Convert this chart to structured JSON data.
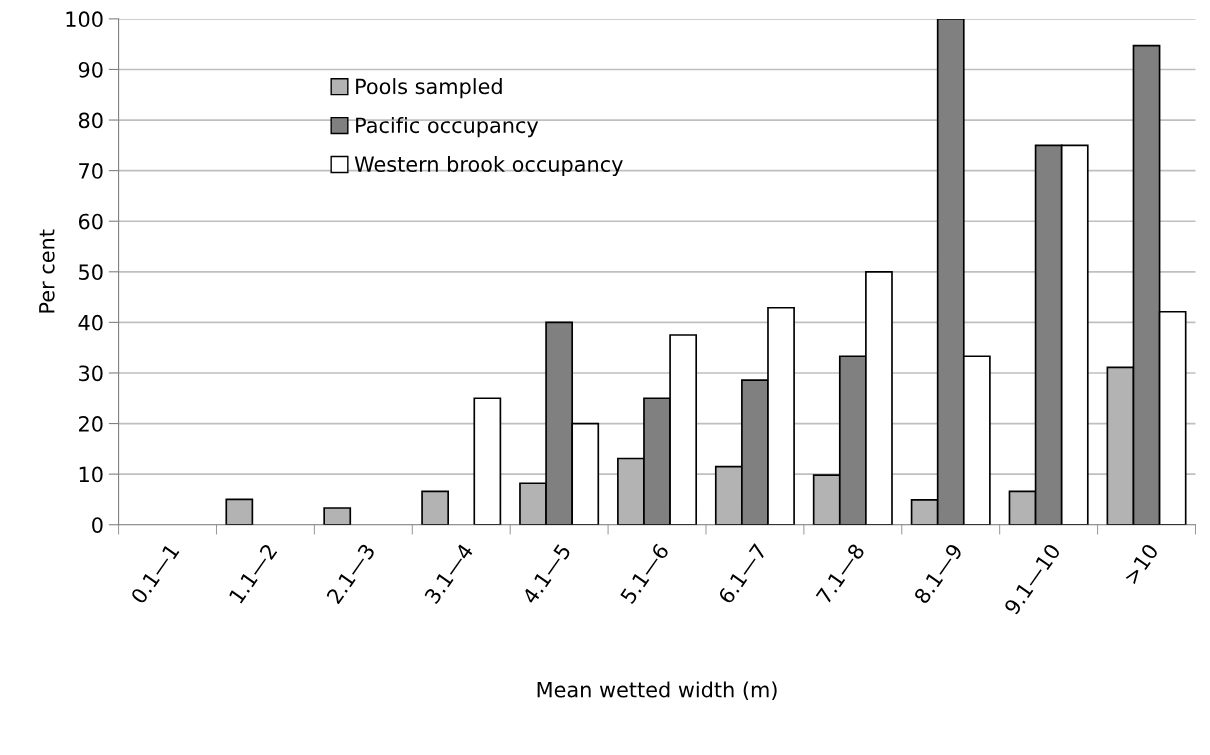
{
  "chart_data": {
    "type": "bar",
    "xlabel": "Mean wetted width (m)",
    "ylabel": "Per cent",
    "categories": [
      "0.1—1",
      "1.1—2",
      "2.1—3",
      "3.1—4",
      "4.1—5",
      "5.1—6",
      "6.1—7",
      "7.1—8",
      "8.1—9",
      "9.1—10",
      ">10"
    ],
    "series": [
      {
        "name": "Pools sampled",
        "color": "#b3b3b3",
        "values": [
          null,
          5,
          3.3,
          6.6,
          8.2,
          13.1,
          11.5,
          9.8,
          4.9,
          6.6,
          31.1
        ]
      },
      {
        "name": "Pacific occupancy",
        "color": "#808080",
        "values": [
          null,
          null,
          null,
          null,
          40,
          25,
          28.6,
          33.3,
          100,
          75,
          94.7
        ]
      },
      {
        "name": "Western brook occupancy",
        "color": "#ffffff",
        "values": [
          null,
          null,
          null,
          25,
          20,
          37.5,
          42.9,
          50,
          33.3,
          75,
          42.1
        ]
      }
    ],
    "ylim": [
      0,
      100
    ],
    "yticks": [
      0,
      10,
      20,
      30,
      40,
      50,
      60,
      70,
      80,
      90,
      100
    ],
    "grid": "y",
    "legend": "top left"
  }
}
